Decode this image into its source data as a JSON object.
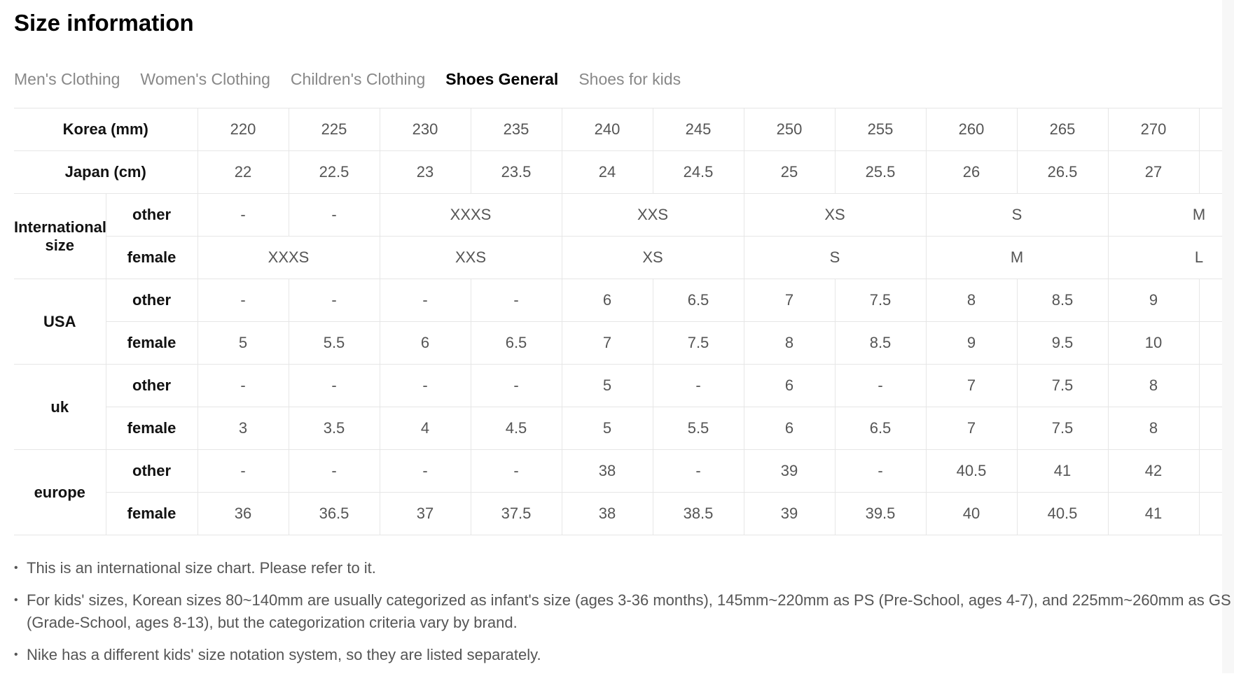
{
  "title": "Size information",
  "tabs": [
    {
      "label": "Men's Clothing",
      "active": false
    },
    {
      "label": "Women's Clothing",
      "active": false
    },
    {
      "label": "Children's Clothing",
      "active": false
    },
    {
      "label": "Shoes General",
      "active": true
    },
    {
      "label": "Shoes for kids",
      "active": false
    }
  ],
  "table": {
    "korea": {
      "label": "Korea (mm)",
      "values": [
        "220",
        "225",
        "230",
        "235",
        "240",
        "245",
        "250",
        "255",
        "260",
        "265",
        "270",
        ""
      ]
    },
    "japan": {
      "label": "Japan (cm)",
      "values": [
        "22",
        "22.5",
        "23",
        "23.5",
        "24",
        "24.5",
        "25",
        "25.5",
        "26",
        "26.5",
        "27",
        ""
      ]
    },
    "international": {
      "label": "International size",
      "other": {
        "label": "other",
        "cells": [
          {
            "v": "-",
            "span": 1
          },
          {
            "v": "-",
            "span": 1
          },
          {
            "v": "XXXS",
            "span": 2
          },
          {
            "v": "XXS",
            "span": 2
          },
          {
            "v": "XS",
            "span": 2
          },
          {
            "v": "S",
            "span": 2
          },
          {
            "v": "M",
            "span": 2
          }
        ]
      },
      "female": {
        "label": "female",
        "cells": [
          {
            "v": "XXXS",
            "span": 2
          },
          {
            "v": "XXS",
            "span": 2
          },
          {
            "v": "XS",
            "span": 2
          },
          {
            "v": "S",
            "span": 2
          },
          {
            "v": "M",
            "span": 2
          },
          {
            "v": "L",
            "span": 2
          }
        ]
      }
    },
    "groups": [
      {
        "label": "USA",
        "other": {
          "label": "other",
          "values": [
            "-",
            "-",
            "-",
            "-",
            "6",
            "6.5",
            "7",
            "7.5",
            "8",
            "8.5",
            "9",
            ""
          ]
        },
        "female": {
          "label": "female",
          "values": [
            "5",
            "5.5",
            "6",
            "6.5",
            "7",
            "7.5",
            "8",
            "8.5",
            "9",
            "9.5",
            "10",
            ""
          ]
        }
      },
      {
        "label": "uk",
        "other": {
          "label": "other",
          "values": [
            "-",
            "-",
            "-",
            "-",
            "5",
            "-",
            "6",
            "-",
            "7",
            "7.5",
            "8",
            ""
          ]
        },
        "female": {
          "label": "female",
          "values": [
            "3",
            "3.5",
            "4",
            "4.5",
            "5",
            "5.5",
            "6",
            "6.5",
            "7",
            "7.5",
            "8",
            ""
          ]
        }
      },
      {
        "label": "europe",
        "other": {
          "label": "other",
          "values": [
            "-",
            "-",
            "-",
            "-",
            "38",
            "-",
            "39",
            "-",
            "40.5",
            "41",
            "42",
            ""
          ]
        },
        "female": {
          "label": "female",
          "values": [
            "36",
            "36.5",
            "37",
            "37.5",
            "38",
            "38.5",
            "39",
            "39.5",
            "40",
            "40.5",
            "41",
            ""
          ]
        }
      }
    ]
  },
  "notes": [
    "This is an international size chart. Please refer to it.",
    "For kids' sizes, Korean sizes 80~140mm are usually categorized as infant's size (ages 3-36 months), 145mm~220mm as PS (Pre-School, ages 4-7), and 225mm~260mm as GS (Grade-School, ages 8-13), but the categorization criteria vary by brand.",
    "Nike has a different kids' size notation system, so they are listed separately."
  ]
}
